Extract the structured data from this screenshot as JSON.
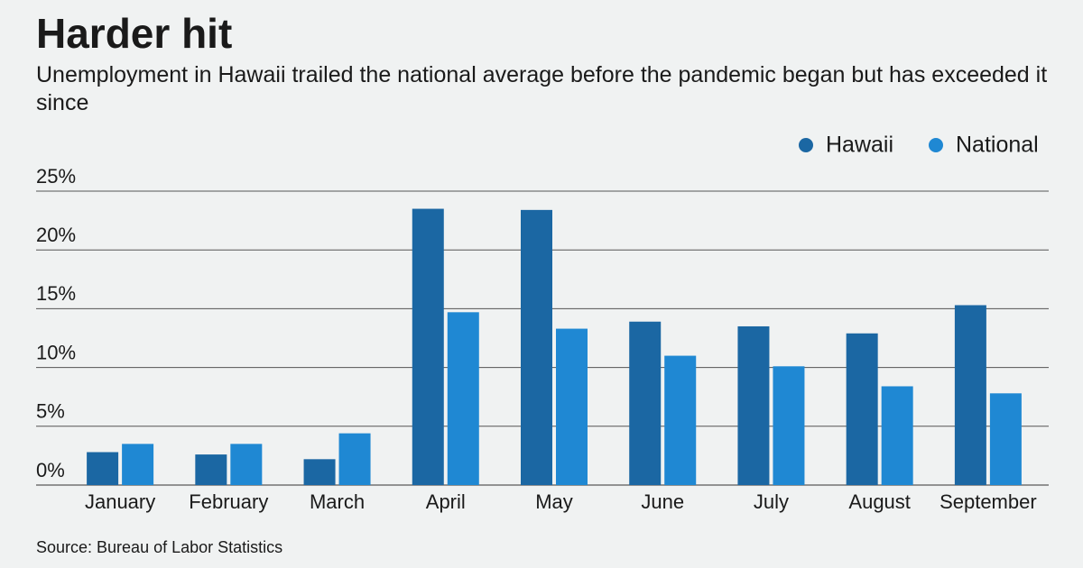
{
  "chart_data": {
    "type": "bar",
    "title": "Harder hit",
    "subtitle": "Unemployment in Hawaii trailed the national average before the pandemic began but has exceeded it since",
    "source": "Source: Bureau of Labor Statistics",
    "categories": [
      "January",
      "February",
      "March",
      "April",
      "May",
      "June",
      "July",
      "August",
      "September"
    ],
    "series": [
      {
        "name": "Hawaii",
        "color": "#1b67a3",
        "values": [
          2.8,
          2.6,
          2.2,
          23.5,
          23.4,
          13.9,
          13.5,
          12.9,
          15.3
        ]
      },
      {
        "name": "National",
        "color": "#1f88d3",
        "values": [
          3.5,
          3.5,
          4.4,
          14.7,
          13.3,
          11.0,
          10.1,
          8.4,
          7.8
        ]
      }
    ],
    "ylim": [
      0,
      25
    ],
    "yticks": [
      {
        "value": 0,
        "label": "0%"
      },
      {
        "value": 5,
        "label": "5%"
      },
      {
        "value": 10,
        "label": "10%"
      },
      {
        "value": 15,
        "label": "15%"
      },
      {
        "value": 20,
        "label": "20%"
      },
      {
        "value": 25,
        "label": "25%"
      }
    ],
    "grid": true,
    "legend": "top-right"
  }
}
